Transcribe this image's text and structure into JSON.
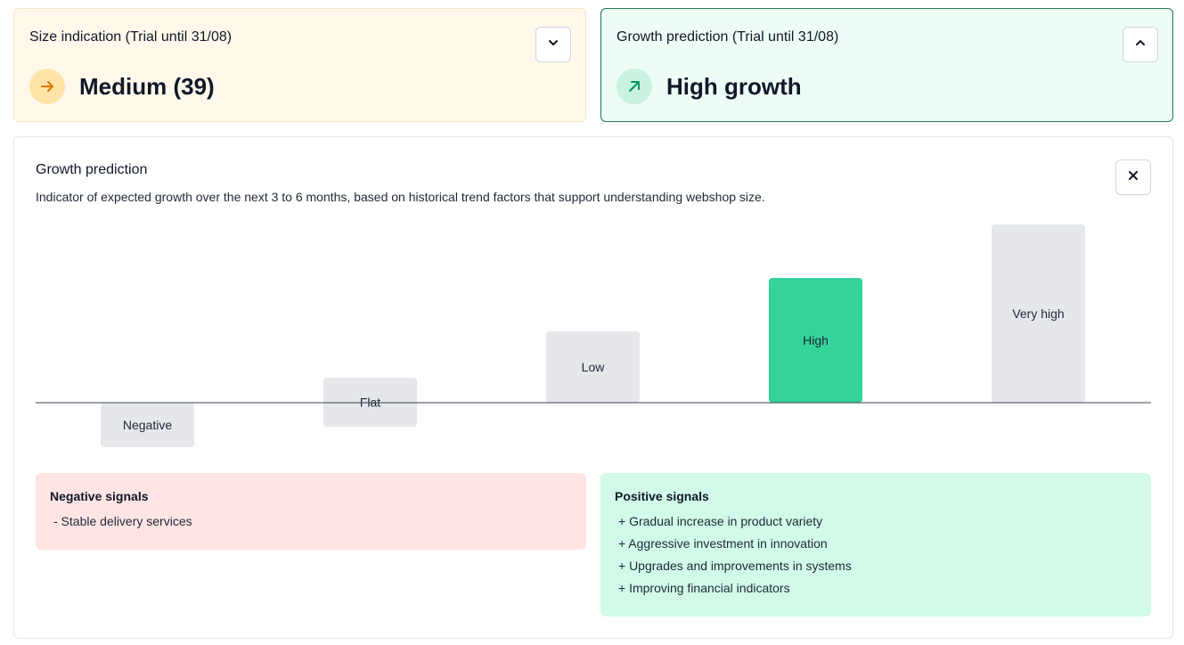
{
  "size_card": {
    "title": "Size indication (Trial until 31/08)",
    "value": "Medium (39)",
    "icon": "arrow-right-icon",
    "accent": "#d97706"
  },
  "growth_card": {
    "title": "Growth prediction (Trial until 31/08)",
    "value": "High growth",
    "icon": "arrow-up-right-icon",
    "accent": "#059669"
  },
  "detail": {
    "title": "Growth prediction",
    "description": "Indicator of expected growth over the next 3 to 6 months, based on historical trend factors that support understanding webshop size."
  },
  "chart_data": {
    "type": "bar",
    "categories": [
      "Negative",
      "Flat",
      "Low",
      "High",
      "Very high"
    ],
    "values": [
      -1,
      0,
      1,
      2,
      3
    ],
    "highlighted": "High",
    "highlight_color": "#34d399",
    "bar_color": "#e5e7eb"
  },
  "negative_signals": {
    "title": "Negative signals",
    "items": [
      "- Stable delivery services"
    ]
  },
  "positive_signals": {
    "title": "Positive signals",
    "items": [
      "+ Gradual increase in product variety",
      "+ Aggressive investment in innovation",
      "+ Upgrades and improvements in systems",
      "+ Improving financial indicators"
    ]
  }
}
